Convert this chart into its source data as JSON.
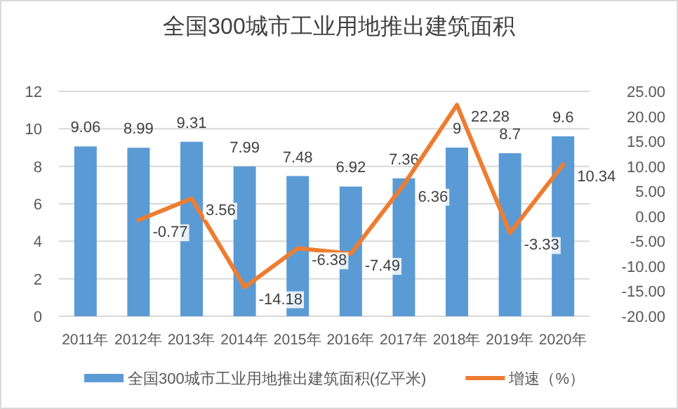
{
  "chart_data": {
    "type": "bar",
    "title": "全国300城市工业用地推出建筑面积",
    "categories": [
      "2011年",
      "2012年",
      "2013年",
      "2014年",
      "2015年",
      "2016年",
      "2017年",
      "2018年",
      "2019年",
      "2020年"
    ],
    "series": [
      {
        "name": "全国300城市工业用地推出建筑面积(亿平米)",
        "color": "#5b9bd5",
        "values": [
          9.06,
          8.99,
          9.31,
          7.99,
          7.48,
          6.92,
          7.36,
          9,
          8.7,
          9.6
        ]
      },
      {
        "name": "增速（%）",
        "type": "line",
        "axis": "y2",
        "color": "#ed7d31",
        "values": [
          null,
          -0.77,
          3.56,
          -14.18,
          -6.38,
          -7.49,
          6.36,
          22.28,
          -3.33,
          10.34
        ]
      }
    ],
    "ylim": [
      0,
      12
    ],
    "yticks": [
      0,
      2,
      4,
      6,
      8,
      10,
      12
    ],
    "y2lim": [
      -20,
      25
    ],
    "y2ticks": [
      {
        "value": -20,
        "label": "-20.00"
      },
      {
        "value": -15,
        "label": "-15.00"
      },
      {
        "value": -10,
        "label": "-10.00"
      },
      {
        "value": -5,
        "label": "-5.00"
      },
      {
        "value": 0,
        "label": "0.00"
      },
      {
        "value": 5,
        "label": "5.00"
      },
      {
        "value": 10,
        "label": "10.00"
      },
      {
        "value": 15,
        "label": "15.00"
      },
      {
        "value": 20,
        "label": "20.00"
      },
      {
        "value": 25,
        "label": "25.00"
      }
    ],
    "grid": "y",
    "legend": "bottom",
    "data_labels": true
  }
}
